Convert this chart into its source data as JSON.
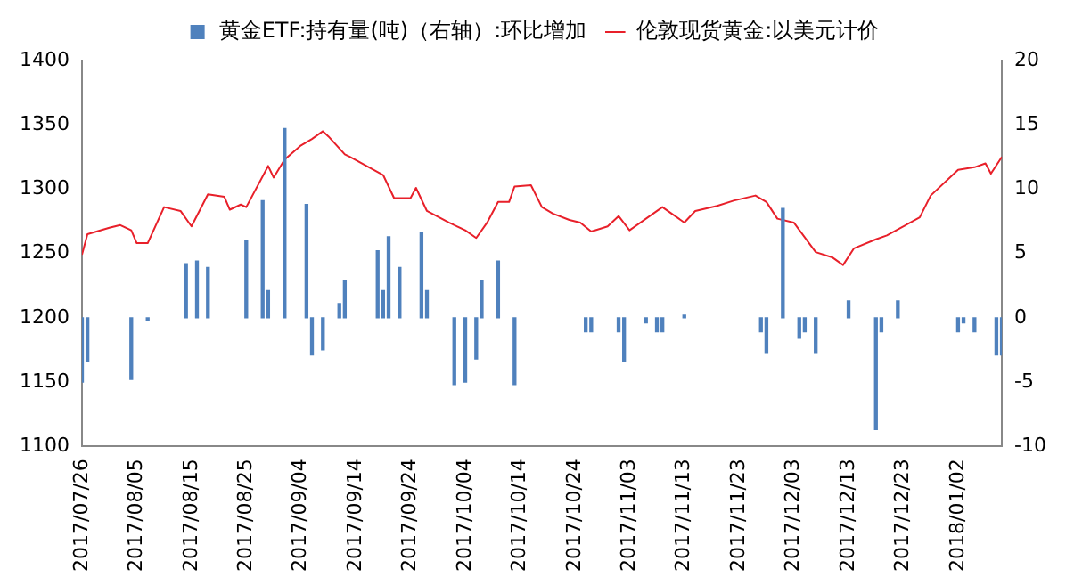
{
  "chart_data": {
    "type": "line",
    "legend": "top",
    "xlim": [
      "2017-07-26",
      "2018-01-10"
    ],
    "xticks": [
      {
        "value": "2017-07-26",
        "label": "2017/07/26"
      },
      {
        "value": "2017-08-05",
        "label": "2017/08/05"
      },
      {
        "value": "2017-08-15",
        "label": "2017/08/15"
      },
      {
        "value": "2017-08-25",
        "label": "2017/08/25"
      },
      {
        "value": "2017-09-04",
        "label": "2017/09/04"
      },
      {
        "value": "2017-09-14",
        "label": "2017/09/14"
      },
      {
        "value": "2017-09-24",
        "label": "2017/09/24"
      },
      {
        "value": "2017-10-04",
        "label": "2017/10/04"
      },
      {
        "value": "2017-10-14",
        "label": "2017/10/14"
      },
      {
        "value": "2017-10-24",
        "label": "2017/10/24"
      },
      {
        "value": "2017-11-03",
        "label": "2017/11/03"
      },
      {
        "value": "2017-11-13",
        "label": "2017/11/13"
      },
      {
        "value": "2017-11-23",
        "label": "2017/11/23"
      },
      {
        "value": "2017-12-03",
        "label": "2017/12/03"
      },
      {
        "value": "2017-12-13",
        "label": "2017/12/13"
      },
      {
        "value": "2017-12-23",
        "label": "2017/12/23"
      },
      {
        "value": "2018-01-02",
        "label": "2018/01/02"
      }
    ],
    "ylim": [
      1100,
      1400
    ],
    "yticks": [
      1100,
      1150,
      1200,
      1250,
      1300,
      1350,
      1400
    ],
    "y2lim": [
      -10,
      20
    ],
    "y2ticks": [
      -10,
      -5,
      0,
      5,
      10,
      15,
      20
    ],
    "series": [
      {
        "name": "黄金ETF:持有量(吨)（右轴）:环比增加",
        "type": "bar",
        "axis": "y2",
        "color": "#4f81bd",
        "x": [
          "2017-07-26",
          "2017-07-27",
          "2017-08-04",
          "2017-08-07",
          "2017-08-14",
          "2017-08-16",
          "2017-08-18",
          "2017-08-25",
          "2017-08-28",
          "2017-08-29",
          "2017-09-01",
          "2017-09-05",
          "2017-09-06",
          "2017-09-08",
          "2017-09-11",
          "2017-09-12",
          "2017-09-18",
          "2017-09-19",
          "2017-09-20",
          "2017-09-22",
          "2017-09-26",
          "2017-09-27",
          "2017-10-02",
          "2017-10-04",
          "2017-10-06",
          "2017-10-07",
          "2017-10-10",
          "2017-10-13",
          "2017-10-26",
          "2017-10-27",
          "2017-11-01",
          "2017-11-02",
          "2017-11-06",
          "2017-11-08",
          "2017-11-09",
          "2017-11-13",
          "2017-11-27",
          "2017-11-28",
          "2017-12-01",
          "2017-12-04",
          "2017-12-05",
          "2017-12-07",
          "2017-12-13",
          "2017-12-18",
          "2017-12-19",
          "2017-12-22",
          "2018-01-02",
          "2018-01-03",
          "2018-01-05",
          "2018-01-09",
          "2018-01-10"
        ],
        "values": [
          -5,
          -3.4,
          -4.8,
          -0.2,
          4.2,
          4.4,
          3.9,
          6,
          9.1,
          2.1,
          14.7,
          8.8,
          -2.9,
          -2.5,
          1.1,
          2.9,
          5.2,
          2.1,
          6.3,
          3.9,
          6.6,
          2.1,
          -5.2,
          -5,
          -3.2,
          2.9,
          4.4,
          -5.2,
          -1.1,
          -1.1,
          -1.1,
          -3.4,
          -0.4,
          -1.1,
          -1.1,
          0.2,
          -1.1,
          -2.7,
          8.5,
          -1.6,
          -1.1,
          -2.7,
          1.3,
          -8.7,
          -1.1,
          1.3,
          -1.1,
          -0.4,
          -1.1,
          -2.9,
          -2.9
        ]
      },
      {
        "name": "伦敦现货黄金:以美元计价",
        "axis": "y",
        "color": "#e8202a",
        "x": [
          "2017-07-26",
          "2017-07-27",
          "2017-07-31",
          "2017-08-02",
          "2017-08-04",
          "2017-08-05",
          "2017-08-07",
          "2017-08-10",
          "2017-08-13",
          "2017-08-15",
          "2017-08-18",
          "2017-08-21",
          "2017-08-22",
          "2017-08-24",
          "2017-08-25",
          "2017-08-29",
          "2017-08-30",
          "2017-09-01",
          "2017-09-04",
          "2017-09-06",
          "2017-09-08",
          "2017-09-09",
          "2017-09-12",
          "2017-09-13",
          "2017-09-19",
          "2017-09-21",
          "2017-09-24",
          "2017-09-25",
          "2017-09-27",
          "2017-10-01",
          "2017-10-04",
          "2017-10-06",
          "2017-10-08",
          "2017-10-10",
          "2017-10-12",
          "2017-10-13",
          "2017-10-16",
          "2017-10-18",
          "2017-10-20",
          "2017-10-23",
          "2017-10-25",
          "2017-10-27",
          "2017-10-30",
          "2017-11-01",
          "2017-11-03",
          "2017-11-09",
          "2017-11-13",
          "2017-11-15",
          "2017-11-19",
          "2017-11-22",
          "2017-11-26",
          "2017-11-28",
          "2017-11-30",
          "2017-12-03",
          "2017-12-07",
          "2017-12-10",
          "2017-12-12",
          "2017-12-14",
          "2017-12-18",
          "2017-12-20",
          "2017-12-26",
          "2017-12-28",
          "2018-01-02",
          "2018-01-05",
          "2018-01-07",
          "2018-01-08",
          "2018-01-10"
        ],
        "values": [
          1249,
          1265,
          1270,
          1272,
          1268,
          1258,
          1258,
          1286,
          1283,
          1271,
          1296,
          1294,
          1284,
          1288,
          1286,
          1318,
          1309,
          1323,
          1334,
          1339,
          1345,
          1341,
          1327,
          1325,
          1311,
          1293,
          1293,
          1301,
          1283,
          1274,
          1268,
          1262,
          1274,
          1290,
          1290,
          1302,
          1303,
          1286,
          1281,
          1276,
          1274,
          1267,
          1271,
          1279,
          1268,
          1286,
          1274,
          1283,
          1287,
          1291,
          1295,
          1290,
          1277,
          1274,
          1251,
          1247,
          1241,
          1254,
          1261,
          1264,
          1278,
          1295,
          1315,
          1317,
          1320,
          1312,
          1325
        ]
      }
    ]
  }
}
